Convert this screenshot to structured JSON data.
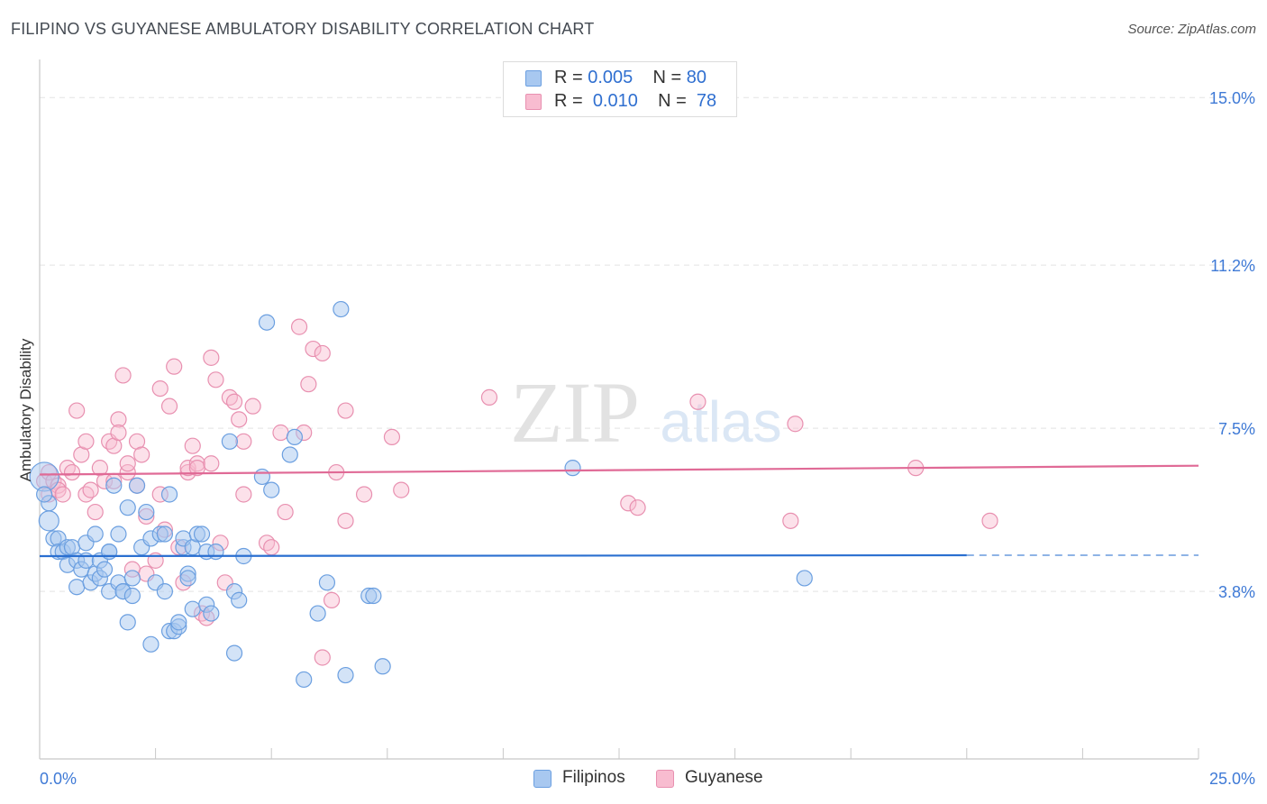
{
  "header": {
    "title": "FILIPINO VS GUYANESE AMBULATORY DISABILITY CORRELATION CHART",
    "source": "Source: ZipAtlas.com"
  },
  "watermark": {
    "zip": "ZIP",
    "atlas": "atlas"
  },
  "legend_top": {
    "rows": [
      {
        "r_label": "R = ",
        "r_value": "0.005",
        "n_label": "N = ",
        "n_value": "80"
      },
      {
        "r_label": "R = ",
        "r_value": "0.010",
        "n_label": "N = ",
        "n_value": "78"
      }
    ]
  },
  "legend_bottom": {
    "items": [
      "Filipinos",
      "Guyanese"
    ]
  },
  "colors": {
    "filipinos_fill": "#a8c8f0",
    "filipinos_stroke": "#6b9fe0",
    "filipinos_line": "#2a6fd0",
    "guyanese_fill": "#f8bcd0",
    "guyanese_stroke": "#e890b0",
    "guyanese_line": "#e06a96",
    "tick_label": "#3f7ad6",
    "grid": "#e3e3e3"
  },
  "chart_data": {
    "type": "scatter",
    "title": "FILIPINO VS GUYANESE AMBULATORY DISABILITY CORRELATION CHART",
    "ylabel": "Ambulatory Disability",
    "xlim": [
      0,
      25
    ],
    "ylim": [
      0,
      15.7
    ],
    "x_tick_labels": [
      {
        "value": 0,
        "label": "0.0%"
      },
      {
        "value": 25,
        "label": "25.0%"
      }
    ],
    "y_tick_labels": [
      {
        "value": 3.8,
        "label": "3.8%"
      },
      {
        "value": 7.5,
        "label": "7.5%"
      },
      {
        "value": 11.2,
        "label": "11.2%"
      },
      {
        "value": 15.0,
        "label": "15.0%"
      }
    ],
    "grid": true,
    "legend_placement": "top-center",
    "series": [
      {
        "name": "Filipinos",
        "r": 0.005,
        "n": 80,
        "trend": {
          "x0": 0,
          "y0": 4.6,
          "x1": 20,
          "y1": 4.62,
          "dashed_to": 25
        },
        "points": [
          [
            0.1,
            6.4,
            1
          ],
          [
            0.2,
            5.4,
            1
          ],
          [
            0.2,
            5.8,
            1
          ],
          [
            0.3,
            5.0,
            1
          ],
          [
            0.4,
            5.0,
            1
          ],
          [
            0.4,
            4.7,
            1
          ],
          [
            0.5,
            4.7,
            1
          ],
          [
            0.6,
            4.8,
            1
          ],
          [
            0.6,
            4.4,
            1
          ],
          [
            0.7,
            4.8,
            1
          ],
          [
            0.8,
            4.5,
            1
          ],
          [
            0.8,
            3.9,
            1
          ],
          [
            0.9,
            4.3,
            1
          ],
          [
            1.0,
            4.5,
            1
          ],
          [
            1.0,
            4.9,
            1
          ],
          [
            1.1,
            4.0,
            1
          ],
          [
            1.2,
            5.1,
            1
          ],
          [
            1.2,
            4.2,
            1
          ],
          [
            1.3,
            4.5,
            1
          ],
          [
            1.3,
            4.1,
            1
          ],
          [
            1.4,
            4.3,
            1
          ],
          [
            1.5,
            4.7,
            1
          ],
          [
            1.5,
            4.7,
            1
          ],
          [
            1.5,
            3.8,
            1
          ],
          [
            1.6,
            6.2,
            1
          ],
          [
            1.7,
            4.0,
            1
          ],
          [
            1.7,
            5.1,
            1
          ],
          [
            1.8,
            3.8,
            1
          ],
          [
            1.8,
            3.8,
            1
          ],
          [
            1.9,
            5.7,
            1
          ],
          [
            1.9,
            3.1,
            1
          ],
          [
            2.0,
            4.1,
            1
          ],
          [
            2.0,
            3.7,
            1
          ],
          [
            2.1,
            6.2,
            1
          ],
          [
            2.2,
            4.8,
            1
          ],
          [
            2.3,
            5.6,
            1
          ],
          [
            2.4,
            5.0,
            1
          ],
          [
            2.4,
            2.6,
            1
          ],
          [
            2.5,
            4.0,
            1
          ],
          [
            2.6,
            5.1,
            1
          ],
          [
            2.7,
            5.1,
            1
          ],
          [
            2.7,
            3.8,
            1
          ],
          [
            2.8,
            6.0,
            1
          ],
          [
            2.8,
            2.9,
            1
          ],
          [
            2.9,
            2.9,
            1
          ],
          [
            3.0,
            3.0,
            1
          ],
          [
            3.0,
            3.1,
            1
          ],
          [
            3.1,
            4.8,
            1
          ],
          [
            3.1,
            5.0,
            1
          ],
          [
            3.2,
            4.2,
            1
          ],
          [
            3.2,
            4.1,
            1
          ],
          [
            3.3,
            4.8,
            1
          ],
          [
            3.3,
            3.4,
            1
          ],
          [
            3.4,
            5.1,
            1
          ],
          [
            3.5,
            5.1,
            1
          ],
          [
            3.6,
            3.5,
            1
          ],
          [
            3.6,
            4.7,
            1
          ],
          [
            3.7,
            3.3,
            1
          ],
          [
            3.8,
            4.7,
            1
          ],
          [
            4.1,
            7.2,
            1
          ],
          [
            4.2,
            3.8,
            1
          ],
          [
            4.3,
            3.6,
            1
          ],
          [
            4.4,
            4.6,
            1
          ],
          [
            4.2,
            2.4,
            1
          ],
          [
            4.8,
            6.4,
            1
          ],
          [
            4.9,
            9.9,
            1
          ],
          [
            5.0,
            6.1,
            1
          ],
          [
            5.4,
            6.9,
            1
          ],
          [
            5.5,
            7.3,
            1
          ],
          [
            5.7,
            1.8,
            1
          ],
          [
            6.0,
            3.3,
            1
          ],
          [
            6.2,
            4.0,
            1
          ],
          [
            6.6,
            1.9,
            1
          ],
          [
            6.5,
            10.2,
            1
          ],
          [
            7.1,
            3.7,
            1
          ],
          [
            7.2,
            3.7,
            1
          ],
          [
            7.4,
            2.1,
            1
          ],
          [
            11.5,
            6.6,
            1
          ],
          [
            16.5,
            4.1,
            1
          ],
          [
            0.1,
            6.0,
            1
          ]
        ]
      },
      {
        "name": "Guyanese",
        "r": 0.01,
        "n": 78,
        "trend": {
          "x0": 0,
          "y0": 6.45,
          "x1": 25,
          "y1": 6.65
        },
        "points": [
          [
            0.1,
            6.3,
            1
          ],
          [
            0.2,
            6.5,
            1
          ],
          [
            0.2,
            6.0,
            1
          ],
          [
            0.3,
            6.3,
            1
          ],
          [
            0.4,
            6.2,
            1
          ],
          [
            0.4,
            6.1,
            1
          ],
          [
            0.5,
            6.0,
            1
          ],
          [
            0.6,
            6.6,
            1
          ],
          [
            0.7,
            6.5,
            1
          ],
          [
            0.8,
            7.9,
            1
          ],
          [
            0.9,
            6.9,
            1
          ],
          [
            1.0,
            7.2,
            1
          ],
          [
            1.0,
            6.0,
            1
          ],
          [
            1.1,
            6.1,
            1
          ],
          [
            1.2,
            5.6,
            1
          ],
          [
            1.3,
            6.6,
            1
          ],
          [
            1.4,
            6.3,
            1
          ],
          [
            1.5,
            7.2,
            1
          ],
          [
            1.6,
            7.1,
            1
          ],
          [
            1.6,
            6.3,
            1
          ],
          [
            1.7,
            7.7,
            1
          ],
          [
            1.7,
            7.4,
            1
          ],
          [
            1.8,
            8.7,
            1
          ],
          [
            1.9,
            6.5,
            1
          ],
          [
            1.9,
            6.7,
            1
          ],
          [
            2.0,
            4.3,
            1
          ],
          [
            2.1,
            6.2,
            1
          ],
          [
            2.1,
            7.2,
            1
          ],
          [
            2.2,
            6.9,
            1
          ],
          [
            2.3,
            5.5,
            1
          ],
          [
            2.3,
            4.2,
            1
          ],
          [
            2.5,
            4.5,
            1
          ],
          [
            2.6,
            8.4,
            1
          ],
          [
            2.6,
            6.0,
            1
          ],
          [
            2.7,
            5.2,
            1
          ],
          [
            2.8,
            8.0,
            1
          ],
          [
            2.9,
            8.9,
            1
          ],
          [
            3.0,
            4.8,
            1
          ],
          [
            3.1,
            4.0,
            1
          ],
          [
            3.2,
            6.5,
            1
          ],
          [
            3.2,
            6.6,
            1
          ],
          [
            3.3,
            7.1,
            1
          ],
          [
            3.4,
            6.7,
            1
          ],
          [
            3.4,
            6.6,
            1
          ],
          [
            3.5,
            3.3,
            1
          ],
          [
            3.6,
            3.2,
            1
          ],
          [
            3.7,
            9.1,
            1
          ],
          [
            3.7,
            6.7,
            1
          ],
          [
            3.8,
            8.6,
            1
          ],
          [
            3.9,
            4.9,
            1
          ],
          [
            4.0,
            4.0,
            1
          ],
          [
            4.1,
            8.2,
            1
          ],
          [
            4.2,
            8.1,
            1
          ],
          [
            4.3,
            7.7,
            1
          ],
          [
            4.4,
            6.0,
            1
          ],
          [
            4.4,
            7.2,
            1
          ],
          [
            4.6,
            8.0,
            1
          ],
          [
            4.9,
            4.9,
            1
          ],
          [
            5.0,
            4.8,
            1
          ],
          [
            5.2,
            7.4,
            1
          ],
          [
            5.3,
            5.6,
            1
          ],
          [
            5.6,
            9.8,
            1
          ],
          [
            5.7,
            7.4,
            1
          ],
          [
            5.8,
            8.5,
            1
          ],
          [
            5.9,
            9.3,
            1
          ],
          [
            6.1,
            9.2,
            1
          ],
          [
            6.1,
            2.3,
            1
          ],
          [
            6.3,
            3.6,
            1
          ],
          [
            6.4,
            6.5,
            1
          ],
          [
            6.6,
            5.4,
            1
          ],
          [
            6.6,
            7.9,
            1
          ],
          [
            7.0,
            6.0,
            1
          ],
          [
            7.6,
            7.3,
            1
          ],
          [
            7.8,
            6.1,
            1
          ],
          [
            9.7,
            8.2,
            1
          ],
          [
            12.7,
            5.8,
            1
          ],
          [
            14.2,
            8.1,
            1
          ],
          [
            16.3,
            7.6,
            1
          ]
        ],
        "extra_points": [
          [
            12.9,
            5.7,
            1
          ],
          [
            16.2,
            5.4,
            1
          ],
          [
            18.9,
            6.6,
            1
          ],
          [
            20.5,
            5.4,
            1
          ]
        ]
      }
    ]
  }
}
